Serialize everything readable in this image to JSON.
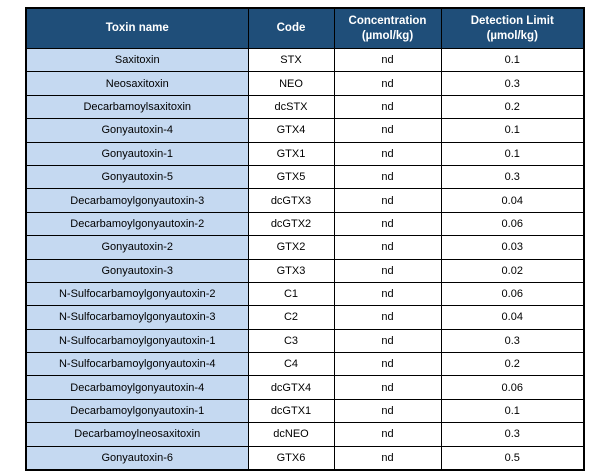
{
  "colors": {
    "header_background": "#1f4e79",
    "header_text": "#ffffff",
    "toxin_name_column_background": "#c5d9f1",
    "cell_background": "#ffffff",
    "border": "#000000"
  },
  "table": {
    "columns": [
      {
        "label": "Toxin name"
      },
      {
        "label": "Code"
      },
      {
        "label": "Concentration (µmol/kg)"
      },
      {
        "label": "Detection Limit (µmol/kg)"
      }
    ],
    "rows": [
      {
        "toxin": "Saxitoxin",
        "code": "STX",
        "concentration": "nd",
        "detection_limit": "0.1"
      },
      {
        "toxin": "Neosaxitoxin",
        "code": "NEO",
        "concentration": "nd",
        "detection_limit": "0.3"
      },
      {
        "toxin": "Decarbamoylsaxitoxin",
        "code": "dcSTX",
        "concentration": "nd",
        "detection_limit": "0.2"
      },
      {
        "toxin": "Gonyautoxin-4",
        "code": "GTX4",
        "concentration": "nd",
        "detection_limit": "0.1"
      },
      {
        "toxin": "Gonyautoxin-1",
        "code": "GTX1",
        "concentration": "nd",
        "detection_limit": "0.1"
      },
      {
        "toxin": "Gonyautoxin-5",
        "code": "GTX5",
        "concentration": "nd",
        "detection_limit": "0.3"
      },
      {
        "toxin": "Decarbamoylgonyautoxin-3",
        "code": "dcGTX3",
        "concentration": "nd",
        "detection_limit": "0.04"
      },
      {
        "toxin": "Decarbamoylgonyautoxin-2",
        "code": "dcGTX2",
        "concentration": "nd",
        "detection_limit": "0.06"
      },
      {
        "toxin": "Gonyautoxin-2",
        "code": "GTX2",
        "concentration": "nd",
        "detection_limit": "0.03"
      },
      {
        "toxin": "Gonyautoxin-3",
        "code": "GTX3",
        "concentration": "nd",
        "detection_limit": "0.02"
      },
      {
        "toxin": "N-Sulfocarbamoylgonyautoxin-2",
        "code": "C1",
        "concentration": "nd",
        "detection_limit": "0.06"
      },
      {
        "toxin": "N-Sulfocarbamoylgonyautoxin-3",
        "code": "C2",
        "concentration": "nd",
        "detection_limit": "0.04"
      },
      {
        "toxin": "N-Sulfocarbamoylgonyautoxin-1",
        "code": "C3",
        "concentration": "nd",
        "detection_limit": "0.3"
      },
      {
        "toxin": "N-Sulfocarbamoylgonyautoxin-4",
        "code": "C4",
        "concentration": "nd",
        "detection_limit": "0.2"
      },
      {
        "toxin": "Decarbamoylgonyautoxin-4",
        "code": "dcGTX4",
        "concentration": "nd",
        "detection_limit": "0.06"
      },
      {
        "toxin": "Decarbamoylgonyautoxin-1",
        "code": "dcGTX1",
        "concentration": "nd",
        "detection_limit": "0.1"
      },
      {
        "toxin": "Decarbamoylneosaxitoxin",
        "code": "dcNEO",
        "concentration": "nd",
        "detection_limit": "0.3"
      },
      {
        "toxin": "Gonyautoxin-6",
        "code": "GTX6",
        "concentration": "nd",
        "detection_limit": "0.5"
      }
    ]
  }
}
